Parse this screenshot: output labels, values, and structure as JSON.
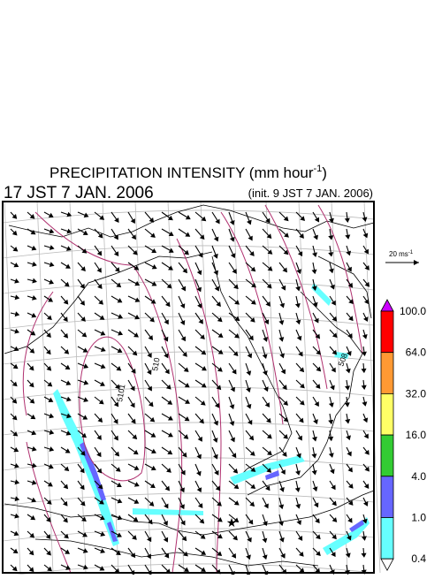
{
  "header": {
    "title": "PRECIPITATION INTENSITY (mm hour",
    "title_sup": "-1",
    "title_close": ")",
    "valid_time": "17 JST 7 JAN. 2006",
    "init_time": "(init. 9 JST 7 JAN. 2006)"
  },
  "reference_vector": {
    "label": "20 ms",
    "sup": "-1"
  },
  "colorbar": {
    "labels": [
      "100.0",
      "64.0",
      "32.0",
      "16.0",
      "4.0",
      "1.0",
      "0.4"
    ],
    "colors": [
      "#ff0000",
      "#ff9933",
      "#ffff66",
      "#33cc33",
      "#6666ff",
      "#66ffff"
    ],
    "top_color": "#cc00ff",
    "bottom_color": "#ffffff"
  },
  "contour_labels": [
    "5101",
    "510",
    "508"
  ]
}
